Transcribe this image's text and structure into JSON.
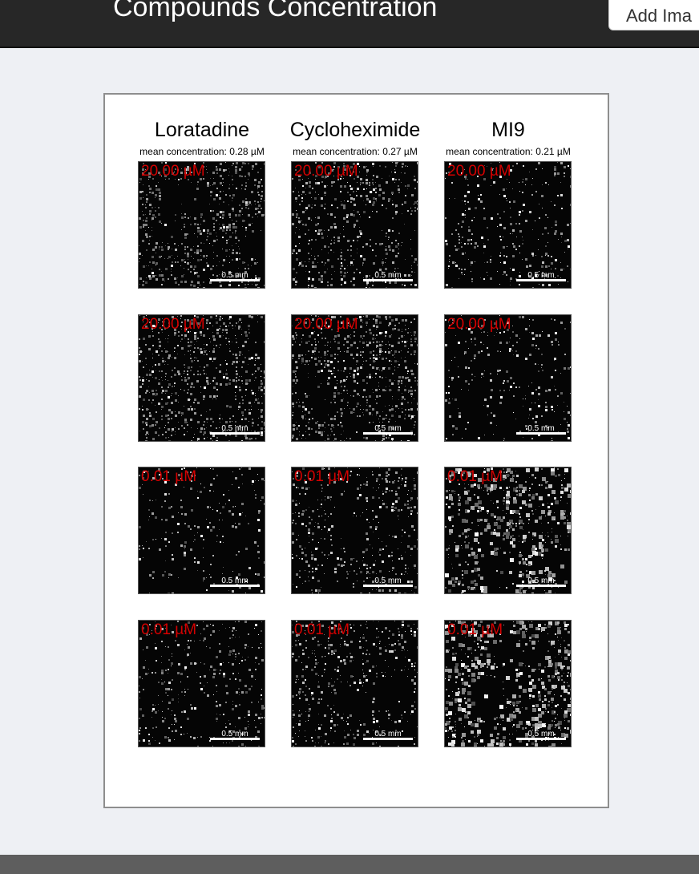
{
  "header": {
    "title": "Compounds Concentration",
    "add_button_label": "Add Ima"
  },
  "figure": {
    "columns": [
      {
        "name": "Loratadine",
        "mean": "mean concentration: 0.28 µM"
      },
      {
        "name": "Cycloheximide",
        "mean": "mean concentration: 0.27 µM"
      },
      {
        "name": "MI9",
        "mean": "mean concentration: 0.21 µM"
      }
    ],
    "rows": [
      {
        "label": "20.00 µM"
      },
      {
        "label": "20.00 µM"
      },
      {
        "label": "0.01 µM"
      },
      {
        "label": "0.01 µM"
      }
    ],
    "scale_bar_label": "0.5 mm"
  }
}
